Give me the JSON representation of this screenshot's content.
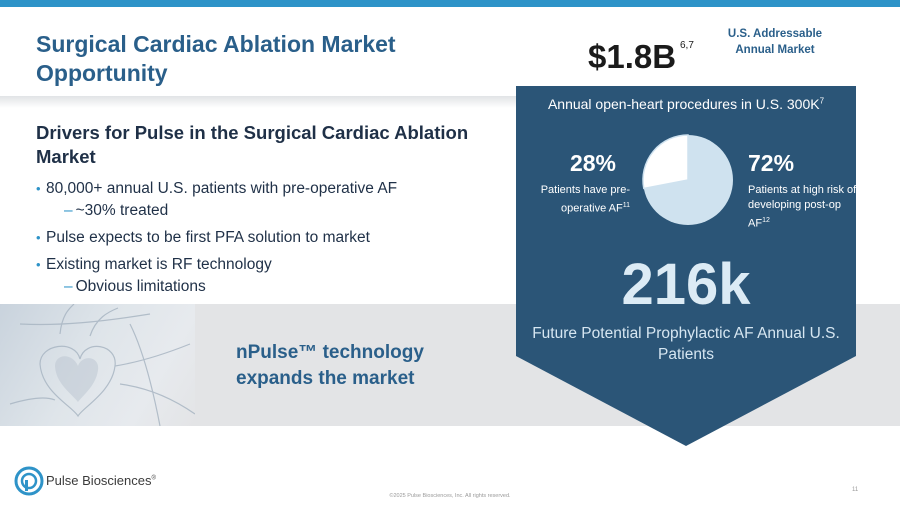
{
  "slide": {
    "title": "Surgical Cardiac Ablation Market Opportunity",
    "drivers_heading": "Drivers for Pulse in the Surgical Cardiac Ablation Market",
    "bullets": [
      "80,000+ annual U.S. patients with pre-operative AF",
      "~30% treated",
      "Pulse expects to be first PFA solution to market",
      "Existing market is RF technology",
      "Obvious limitations"
    ],
    "npulse_label": "nPulse™ technology expands the market"
  },
  "market": {
    "value": "$1.8B",
    "value_sup": "6,7",
    "label": "U.S. Addressable Annual Market"
  },
  "procedures": {
    "title": "Annual open-heart procedures in U.S. 300K",
    "title_sup": "7",
    "left_pct": "28%",
    "left_desc": "Patients have pre-operative AF",
    "left_sup": "11",
    "right_pct": "72%",
    "right_desc": "Patients at high risk of developing post-op AF",
    "right_sup": "12",
    "pie_share": 0.28,
    "future_value": "216k",
    "future_label": "Future Potential Prophylactic AF Annual U.S. Patients"
  },
  "footer": {
    "brand": "Pulse Biosciences",
    "brand_mark": "®",
    "copyright": "©2025 Pulse Biosciences, Inc. All rights reserved.",
    "page_number": "11"
  },
  "colors": {
    "accent": "#2e93c8",
    "title": "#2a5f8a",
    "navy_panel": "#2b5577",
    "pie_light": "#cfe2ef"
  }
}
